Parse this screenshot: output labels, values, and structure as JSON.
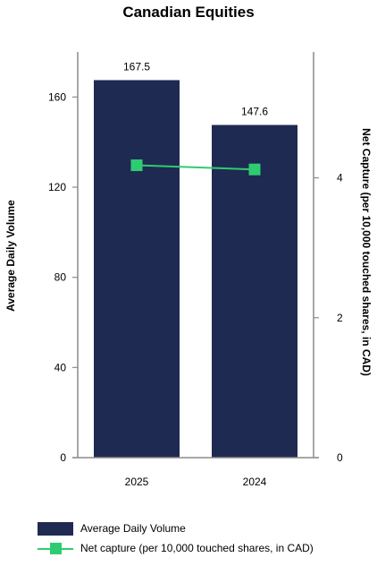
{
  "chart_data": {
    "type": "bar",
    "title": "Canadian Equities",
    "categories": [
      "2025",
      "2024"
    ],
    "series": [
      {
        "name": "Average Daily Volume",
        "type": "bar",
        "axis": "left",
        "values": [
          167.5,
          147.6
        ],
        "data_labels": [
          "167.5",
          "147.6"
        ],
        "color": "#1f2a52"
      },
      {
        "name": "Net capture (per 10,000 touched shares, in CAD)",
        "type": "line",
        "axis": "right",
        "values": [
          4.18,
          4.12
        ],
        "color": "#2ecc71"
      }
    ],
    "ylabel": "Average Daily Volume",
    "ylabel_right": "Net Capture (per 10,000 touched shares, in CAD)",
    "ylim": [
      0,
      180
    ],
    "ylim_right": [
      0,
      5.8
    ],
    "yticks": [
      "0",
      "40",
      "80",
      "120",
      "160"
    ],
    "yticks_right": [
      "0",
      "2",
      "4"
    ],
    "grid": false,
    "legend_position": "bottom-left"
  }
}
